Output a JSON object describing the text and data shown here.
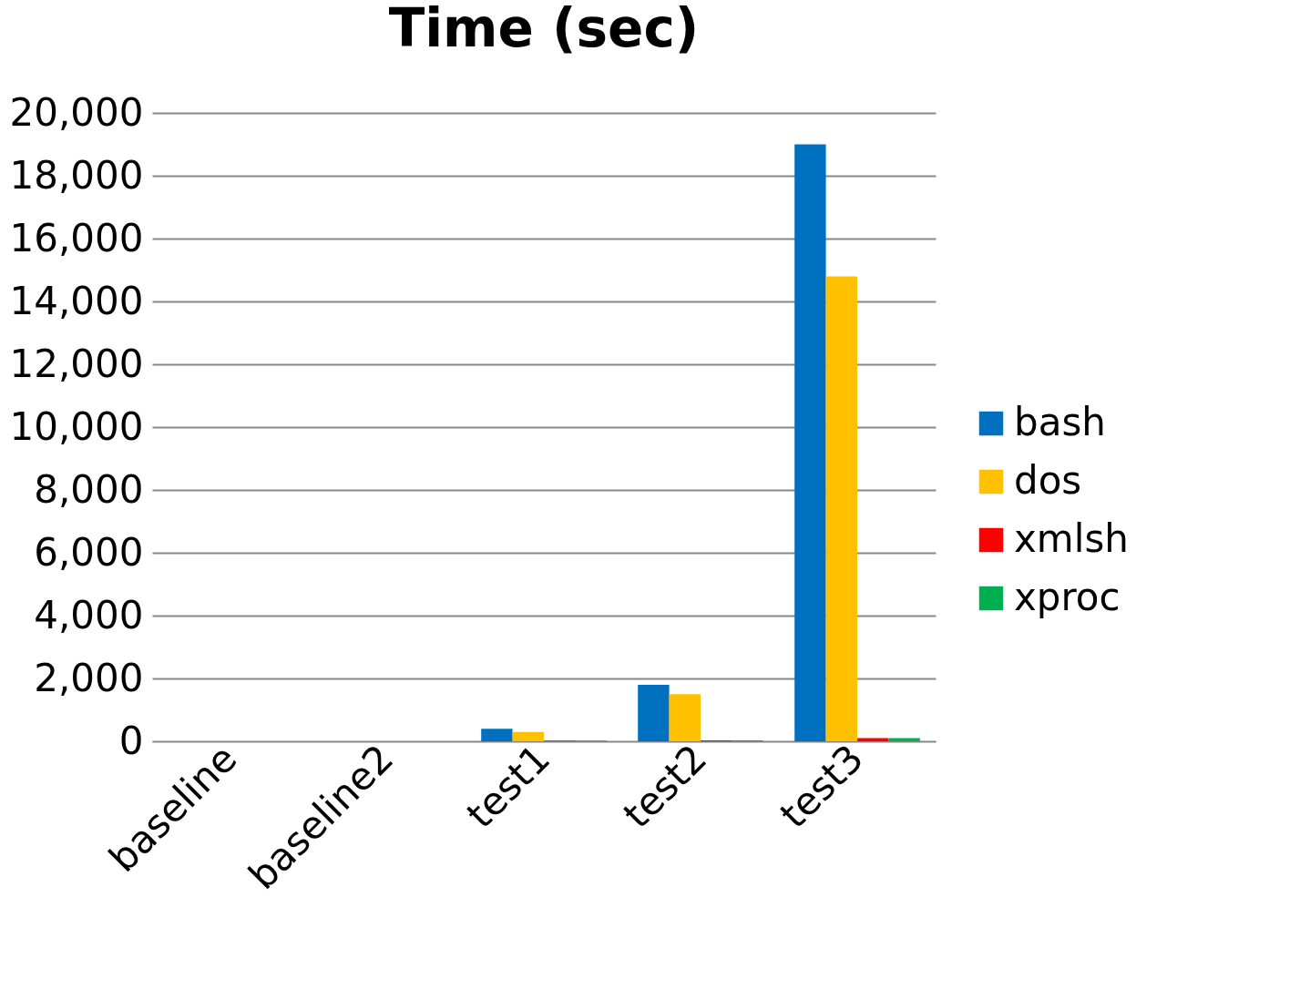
{
  "chart_data": {
    "type": "bar",
    "title": "Time (sec)",
    "categories": [
      "baseline",
      "baseline2",
      "test1",
      "test2",
      "test3"
    ],
    "series": [
      {
        "name": "bash",
        "color": "#0070c0",
        "values": [
          0,
          0,
          400,
          1800,
          19000
        ]
      },
      {
        "name": "dos",
        "color": "#ffc000",
        "values": [
          0,
          0,
          300,
          1500,
          14800
        ]
      },
      {
        "name": "xmlsh",
        "color": "#ff0000",
        "values": [
          0,
          0,
          20,
          30,
          100
        ]
      },
      {
        "name": "xproc",
        "color": "#00b050",
        "values": [
          0,
          0,
          20,
          30,
          100
        ]
      }
    ],
    "ylim": [
      0,
      20000
    ],
    "yticks": [
      0,
      {
        "value": 2000,
        "label": "2,000"
      },
      {
        "value": 4000,
        "label": "4,000"
      },
      {
        "value": 6000,
        "label": "6,000"
      },
      {
        "value": 8000,
        "label": "8,000"
      },
      {
        "value": 10000,
        "label": "10,000"
      },
      {
        "value": 12000,
        "label": "12,000"
      },
      {
        "value": 14000,
        "label": "14,000"
      },
      {
        "value": 16000,
        "label": "16,000"
      },
      {
        "value": 18000,
        "label": "18,000"
      },
      {
        "value": 20000,
        "label": "20,000"
      }
    ],
    "grid": "y",
    "legend": "right"
  }
}
